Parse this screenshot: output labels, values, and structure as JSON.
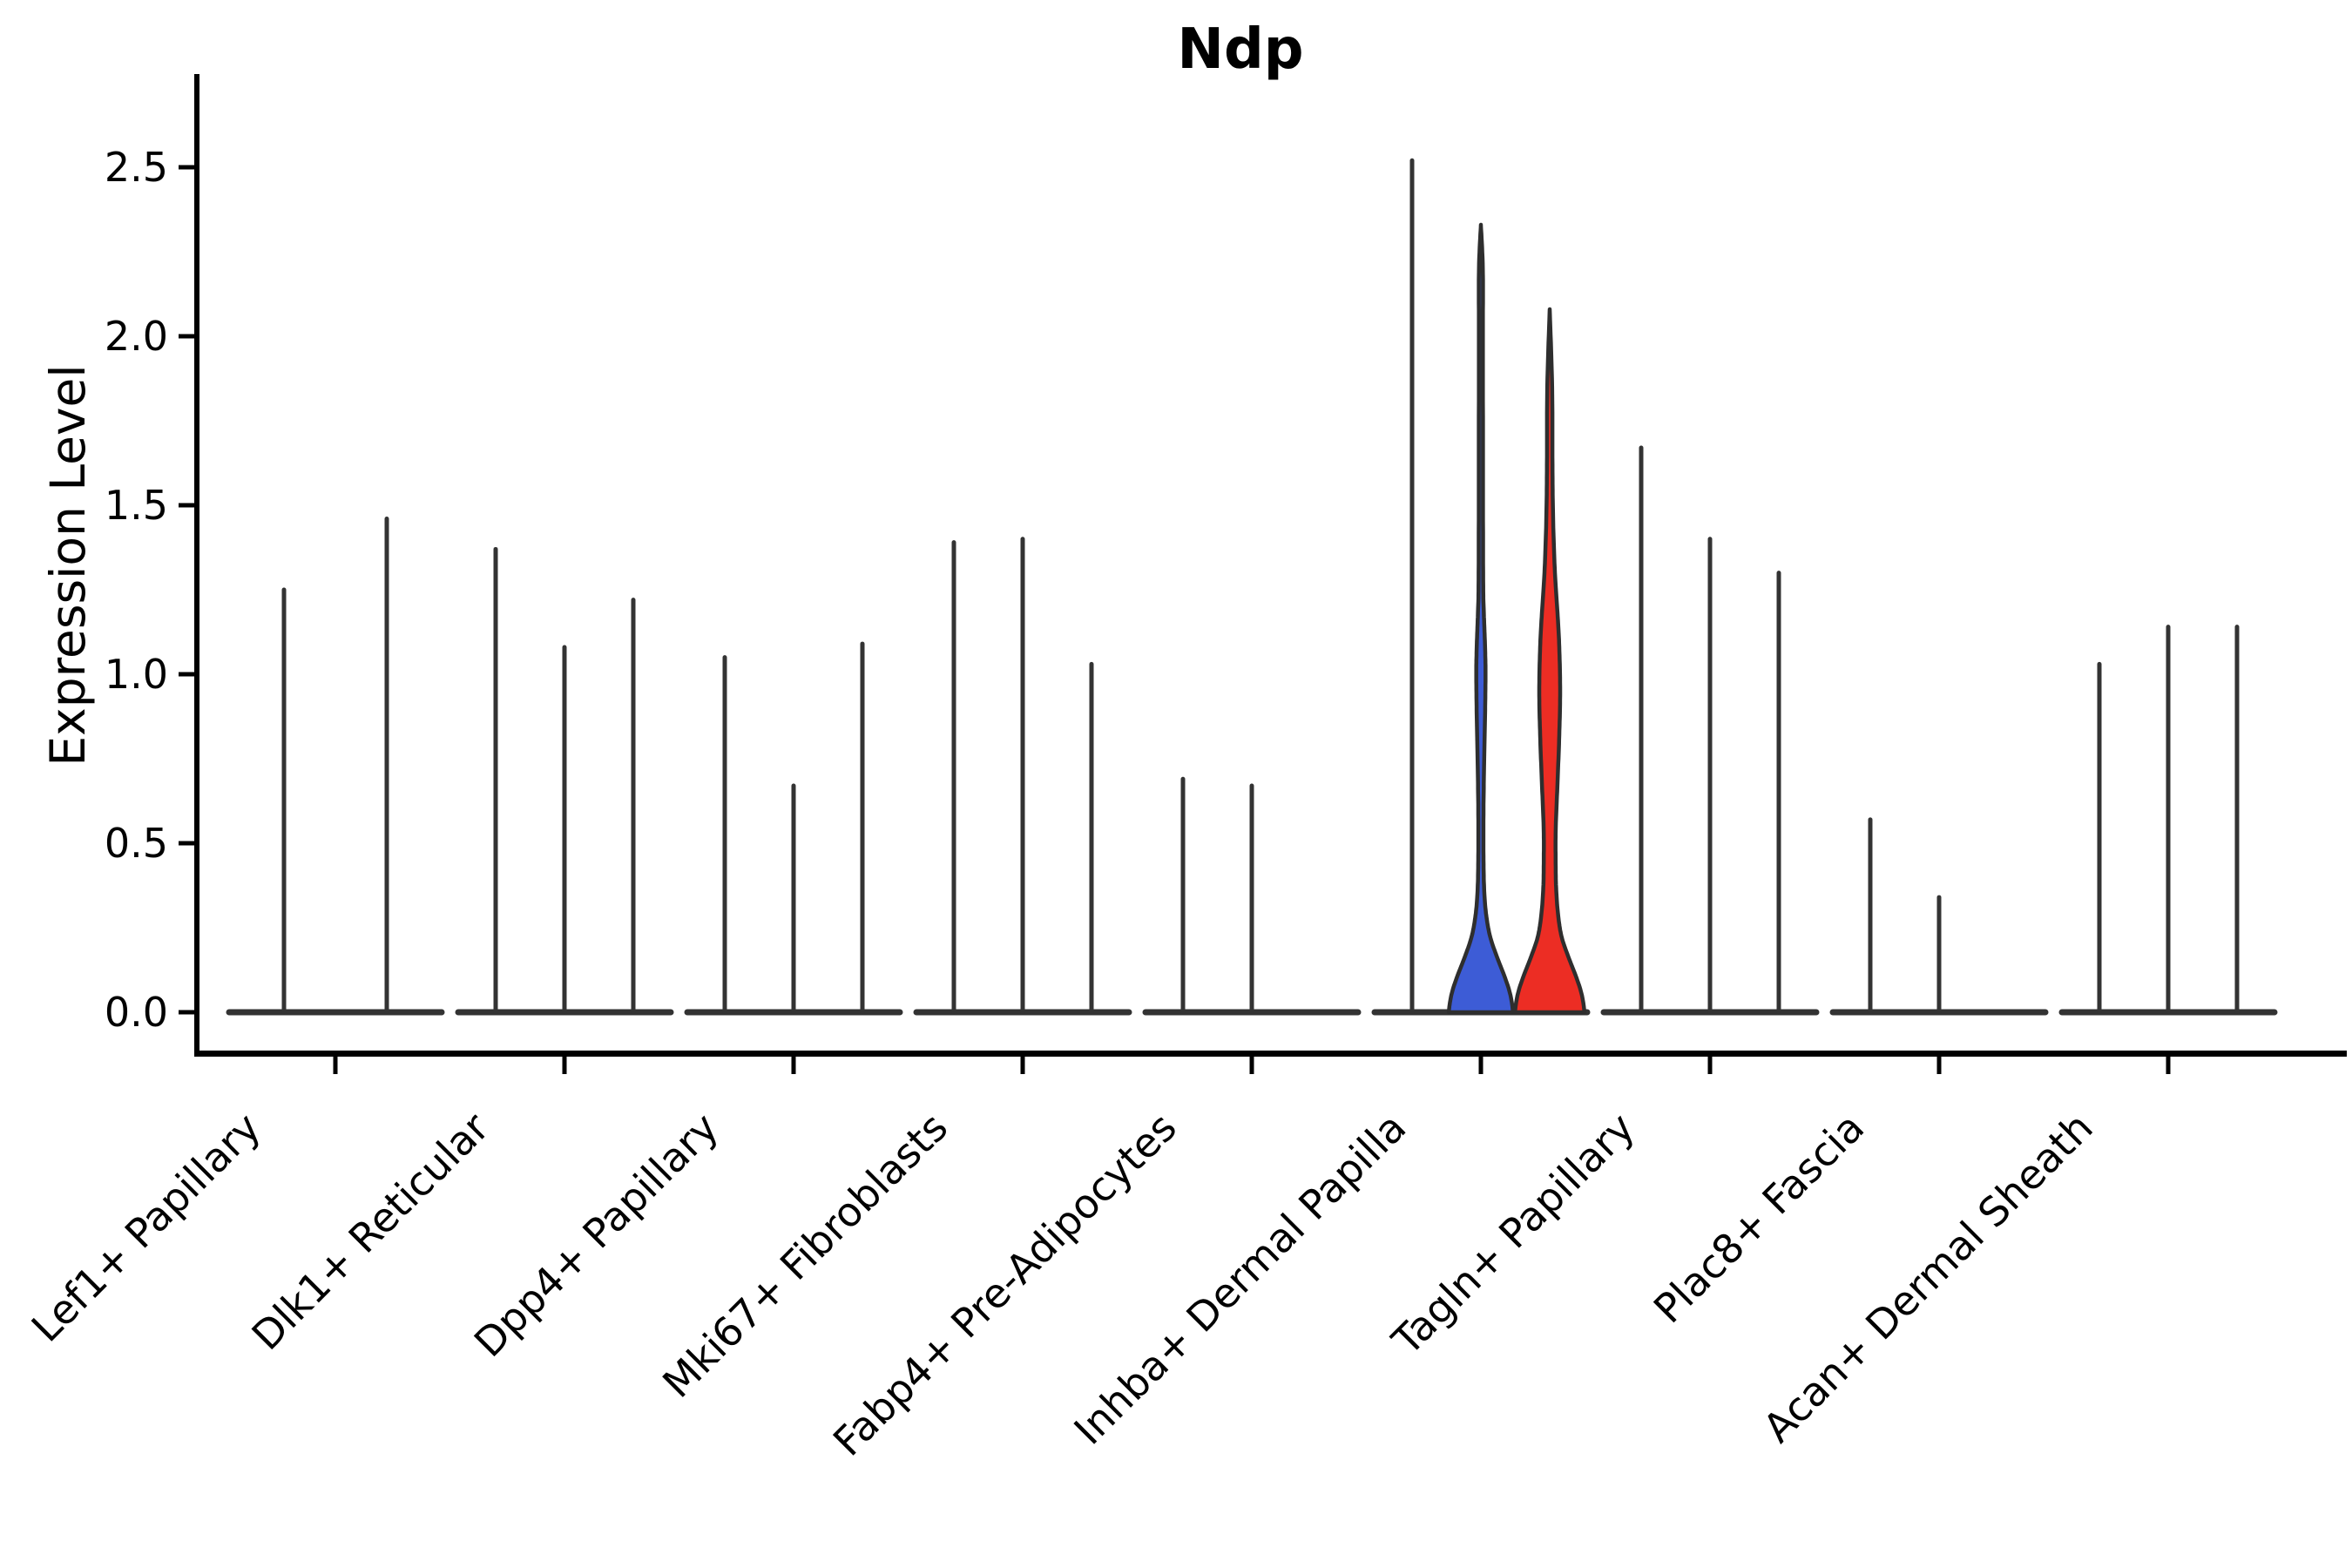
{
  "title": "Ndp",
  "ylabel": "Expression Level",
  "chart_data": {
    "type": "violin",
    "title": "Ndp",
    "xlabel": "",
    "ylabel": "Expression Level",
    "ylim": [
      0,
      2.6
    ],
    "grid": false,
    "legend": "none",
    "yticks": [
      {
        "label": "0.0",
        "value": 0.0
      },
      {
        "label": "0.5",
        "value": 0.5
      },
      {
        "label": "1.0",
        "value": 1.0
      },
      {
        "label": "1.5",
        "value": 1.5
      },
      {
        "label": "2.0",
        "value": 2.0
      },
      {
        "label": "2.5",
        "value": 2.5
      }
    ],
    "categories": [
      {
        "label": "Lef1+ Papillary",
        "violins": [
          {
            "slot": -59,
            "max": 1.25,
            "fill": "none"
          },
          {
            "slot": 59,
            "max": 1.46,
            "fill": "none"
          }
        ]
      },
      {
        "label": "Dlk1+ Reticular",
        "violins": [
          {
            "slot": -79,
            "max": 1.37,
            "fill": "none"
          },
          {
            "slot": 0,
            "max": 1.08,
            "fill": "none"
          },
          {
            "slot": 79,
            "max": 1.22,
            "fill": "none"
          }
        ]
      },
      {
        "label": "Dpp4+ Papillary",
        "violins": [
          {
            "slot": -79,
            "max": 1.05,
            "fill": "none"
          },
          {
            "slot": 0,
            "max": 0.67,
            "fill": "none"
          },
          {
            "slot": 79,
            "max": 1.09,
            "fill": "none"
          }
        ]
      },
      {
        "label": "Mki67+ Fibroblasts",
        "violins": [
          {
            "slot": -79,
            "max": 1.39,
            "fill": "none"
          },
          {
            "slot": 0,
            "max": 1.4,
            "fill": "none"
          },
          {
            "slot": 79,
            "max": 1.03,
            "fill": "none"
          }
        ]
      },
      {
        "label": "Fabp4+ Pre-Adipocytes",
        "violins": [
          {
            "slot": -79,
            "max": 0.69,
            "fill": "none"
          },
          {
            "slot": 0,
            "max": 0.67,
            "fill": "none"
          }
        ]
      },
      {
        "label": "Inhba+ Dermal Papilla",
        "violins": [
          {
            "slot": -79,
            "max": 2.52,
            "fill": "none"
          },
          {
            "slot": 0,
            "max": 2.33,
            "fill": "blue",
            "profile": [
              [
                0,
                37
              ],
              [
                0.05,
                34
              ],
              [
                0.1,
                28
              ],
              [
                0.16,
                19
              ],
              [
                0.22,
                11
              ],
              [
                0.28,
                6.5
              ],
              [
                0.35,
                4
              ],
              [
                0.45,
                3
              ],
              [
                0.6,
                3
              ],
              [
                0.75,
                3.8
              ],
              [
                0.88,
                4.8
              ],
              [
                1.0,
                5.3
              ],
              [
                1.08,
                4.8
              ],
              [
                1.18,
                3.4
              ],
              [
                1.28,
                2.6
              ],
              [
                1.6,
                2.4
              ],
              [
                2.0,
                2.3
              ],
              [
                2.2,
                2.2
              ],
              [
                2.33,
                0
              ]
            ]
          },
          {
            "slot": 79,
            "max": 2.08,
            "fill": "red",
            "profile": [
              [
                0,
                40
              ],
              [
                0.05,
                37
              ],
              [
                0.1,
                31
              ],
              [
                0.16,
                22
              ],
              [
                0.22,
                14
              ],
              [
                0.28,
                10
              ],
              [
                0.36,
                7.5
              ],
              [
                0.45,
                6.8
              ],
              [
                0.55,
                7
              ],
              [
                0.68,
                9
              ],
              [
                0.82,
                11
              ],
              [
                0.95,
                12
              ],
              [
                1.08,
                11
              ],
              [
                1.18,
                9
              ],
              [
                1.3,
                6
              ],
              [
                1.45,
                4
              ],
              [
                1.6,
                3.2
              ],
              [
                1.85,
                2.8
              ],
              [
                2.08,
                0
              ]
            ]
          }
        ]
      },
      {
        "label": "Tagln+ Papillary",
        "violins": [
          {
            "slot": -79,
            "max": 1.67,
            "fill": "none"
          },
          {
            "slot": 0,
            "max": 1.4,
            "fill": "none"
          },
          {
            "slot": 79,
            "max": 1.3,
            "fill": "none"
          }
        ]
      },
      {
        "label": "Plac8+ Fascia",
        "violins": [
          {
            "slot": -79,
            "max": 0.57,
            "fill": "none"
          },
          {
            "slot": 0,
            "max": 0.34,
            "fill": "none"
          }
        ]
      },
      {
        "label": "Acan+ Dermal Sheath",
        "violins": [
          {
            "slot": -79,
            "max": 1.03,
            "fill": "none"
          },
          {
            "slot": 0,
            "max": 1.14,
            "fill": "none"
          },
          {
            "slot": 79,
            "max": 1.14,
            "fill": "none"
          }
        ]
      }
    ],
    "colors": {
      "blue": "#3D5CD6",
      "red": "#EC2D24",
      "spike": "#333333",
      "violin_outline": "#2E2E2E",
      "axis": "#000000"
    }
  }
}
